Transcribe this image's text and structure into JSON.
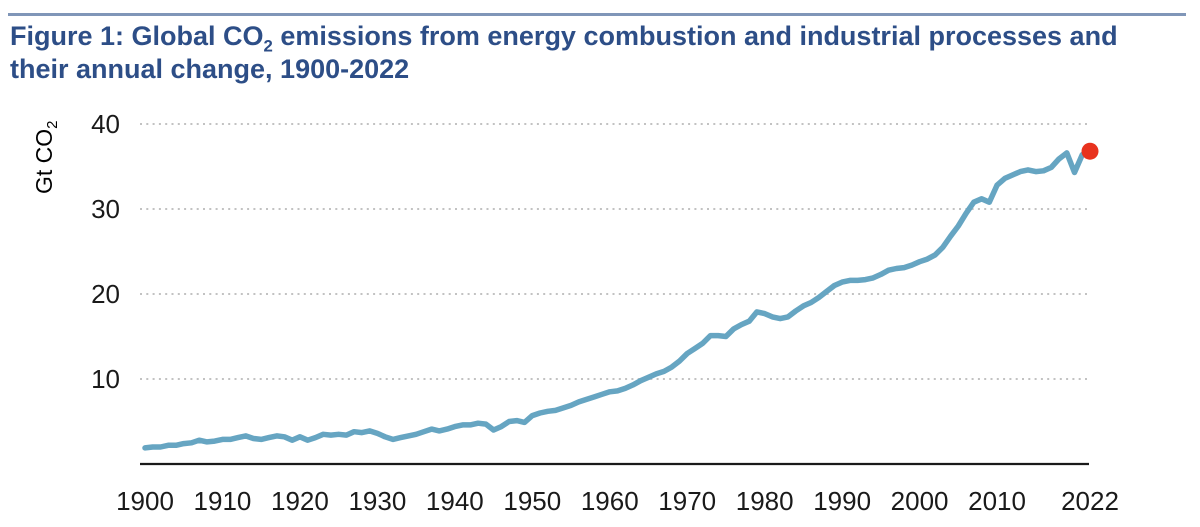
{
  "header": {
    "title_line1_pre": "Figure 1: Global CO",
    "title_co2_sub": "2",
    "title_line1_post": " emissions from energy combustion and industrial processes and",
    "title_line2": "their annual change, 1900-2022"
  },
  "colors": {
    "title": "#2d4e87",
    "rule": "#8096b8",
    "background": "#ffffff"
  },
  "chart_data": {
    "type": "line",
    "title": "Global CO2 emissions from energy combustion and industrial processes and their annual change, 1900-2022",
    "ylabel_pre": "Gt CO",
    "ylabel_sub": "2",
    "xlabel": "",
    "xlim": [
      1900,
      2022
    ],
    "ylim": [
      0,
      42
    ],
    "grid": "dotted-horizontal",
    "legend": "none",
    "yticks": [
      10,
      20,
      30,
      40
    ],
    "xticks": [
      1900,
      1910,
      1920,
      1930,
      1940,
      1950,
      1960,
      1970,
      1980,
      1990,
      2000,
      2010,
      2022
    ],
    "line_color": "#66a5c2",
    "grid_color": "#c2c2c2",
    "axis_color": "#1a1a1a",
    "x": [
      1900,
      1901,
      1902,
      1903,
      1904,
      1905,
      1906,
      1907,
      1908,
      1909,
      1910,
      1911,
      1912,
      1913,
      1914,
      1915,
      1916,
      1917,
      1918,
      1919,
      1920,
      1921,
      1922,
      1923,
      1924,
      1925,
      1926,
      1927,
      1928,
      1929,
      1930,
      1931,
      1932,
      1933,
      1934,
      1935,
      1936,
      1937,
      1938,
      1939,
      1940,
      1941,
      1942,
      1943,
      1944,
      1945,
      1946,
      1947,
      1948,
      1949,
      1950,
      1951,
      1952,
      1953,
      1954,
      1955,
      1956,
      1957,
      1958,
      1959,
      1960,
      1961,
      1962,
      1963,
      1964,
      1965,
      1966,
      1967,
      1968,
      1969,
      1970,
      1971,
      1972,
      1973,
      1974,
      1975,
      1976,
      1977,
      1978,
      1979,
      1980,
      1981,
      1982,
      1983,
      1984,
      1985,
      1986,
      1987,
      1988,
      1989,
      1990,
      1991,
      1992,
      1993,
      1994,
      1995,
      1996,
      1997,
      1998,
      1999,
      2000,
      2001,
      2002,
      2003,
      2004,
      2005,
      2006,
      2007,
      2008,
      2009,
      2010,
      2011,
      2012,
      2013,
      2014,
      2015,
      2016,
      2017,
      2018,
      2019,
      2020,
      2021,
      2022
    ],
    "series": [
      {
        "name": "Global CO2 emissions (Gt CO2)",
        "values": [
          1.9,
          2.0,
          2.0,
          2.2,
          2.2,
          2.4,
          2.5,
          2.8,
          2.6,
          2.7,
          2.9,
          2.9,
          3.1,
          3.3,
          3.0,
          2.9,
          3.1,
          3.3,
          3.2,
          2.8,
          3.2,
          2.8,
          3.1,
          3.5,
          3.4,
          3.5,
          3.4,
          3.8,
          3.7,
          3.9,
          3.6,
          3.2,
          2.9,
          3.1,
          3.3,
          3.5,
          3.8,
          4.1,
          3.9,
          4.1,
          4.4,
          4.6,
          4.6,
          4.8,
          4.7,
          4.0,
          4.4,
          5.0,
          5.1,
          4.9,
          5.7,
          6.0,
          6.2,
          6.3,
          6.6,
          6.9,
          7.3,
          7.6,
          7.9,
          8.2,
          8.5,
          8.6,
          8.9,
          9.3,
          9.8,
          10.2,
          10.6,
          10.9,
          11.4,
          12.1,
          13.0,
          13.6,
          14.2,
          15.1,
          15.1,
          15.0,
          15.9,
          16.4,
          16.8,
          17.9,
          17.7,
          17.3,
          17.1,
          17.3,
          18.0,
          18.6,
          19.0,
          19.6,
          20.3,
          21.0,
          21.4,
          21.6,
          21.6,
          21.7,
          21.9,
          22.3,
          22.8,
          23.0,
          23.1,
          23.4,
          23.8,
          24.1,
          24.6,
          25.5,
          26.8,
          28.0,
          29.5,
          30.8,
          31.2,
          30.8,
          32.8,
          33.6,
          34.0,
          34.4,
          34.6,
          34.4,
          34.5,
          34.9,
          35.9,
          36.6,
          34.3,
          36.4,
          36.8
        ]
      }
    ],
    "highlight_point": {
      "year": 2022,
      "value": 36.8,
      "color": "#e8321e"
    }
  }
}
